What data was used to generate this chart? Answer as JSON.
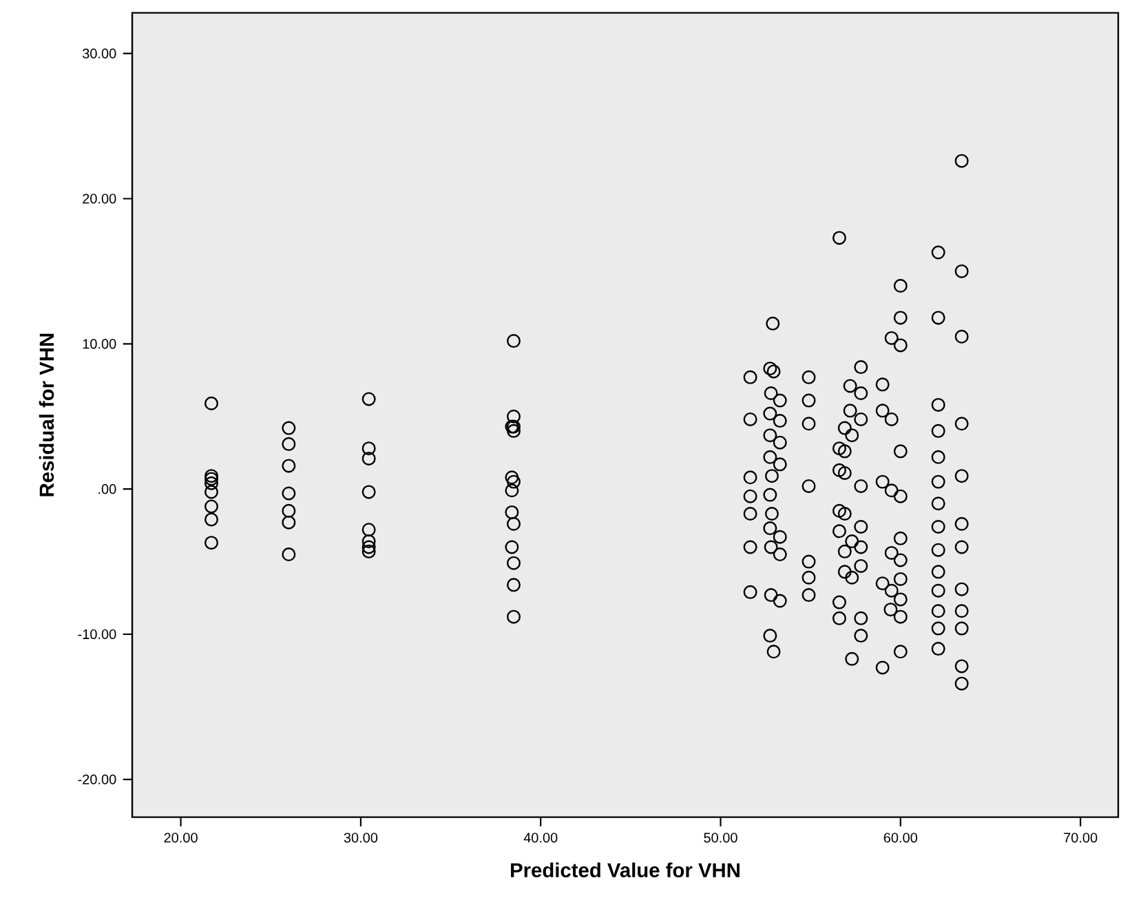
{
  "chart_data": {
    "type": "scatter",
    "xlabel": "Predicted Value for VHN",
    "ylabel": "Residual for VHN",
    "xlim": [
      17.3,
      72.1
    ],
    "ylim": [
      -22.6,
      32.8
    ],
    "xticks": [
      {
        "value": 20,
        "label": "20.00"
      },
      {
        "value": 30,
        "label": "30.00"
      },
      {
        "value": 40,
        "label": "40.00"
      },
      {
        "value": 50,
        "label": "50.00"
      },
      {
        "value": 60,
        "label": "60.00"
      },
      {
        "value": 70,
        "label": "70.00"
      }
    ],
    "yticks": [
      {
        "value": -20,
        "label": "-20.00"
      },
      {
        "value": -10,
        "label": "-10.00"
      },
      {
        "value": 0,
        "label": ".00"
      },
      {
        "value": 10,
        "label": "10.00"
      },
      {
        "value": 20,
        "label": "20.00"
      },
      {
        "value": 30,
        "label": "30.00"
      }
    ],
    "marker": "circle",
    "series": [
      {
        "color": "#000000",
        "x": [
          21.7,
          21.7,
          21.7,
          21.7,
          21.7,
          21.7,
          21.7,
          21.7,
          26.0,
          26.0,
          26.0,
          26.0,
          26.0,
          26.0,
          26.0,
          30.45,
          30.45,
          30.45,
          30.45,
          30.45,
          30.45,
          30.45,
          30.45,
          38.5,
          38.5,
          38.4,
          38.5,
          38.5,
          38.4,
          38.5,
          38.4,
          38.4,
          38.5,
          38.4,
          38.5,
          38.5,
          38.5,
          56.6,
          62.1,
          63.4,
          60.0,
          60.0,
          62.1,
          63.4,
          52.9,
          59.5,
          60.0,
          57.8,
          51.65,
          52.75,
          52.95,
          54.9,
          57.2,
          57.8,
          59.0,
          52.8,
          53.3,
          54.9,
          52.75,
          57.2,
          59.0,
          62.1,
          51.65,
          53.3,
          54.9,
          56.9,
          57.8,
          59.5,
          62.1,
          63.4,
          52.75,
          57.3,
          53.3,
          56.6,
          56.9,
          60.0,
          62.1,
          52.75,
          53.3,
          51.65,
          52.85,
          56.6,
          56.9,
          54.9,
          57.8,
          59.0,
          59.5,
          60.0,
          62.1,
          63.4,
          51.65,
          52.75,
          51.65,
          52.85,
          62.1,
          56.6,
          56.9,
          57.8,
          52.75,
          53.3,
          62.1,
          63.4,
          56.6,
          57.3,
          51.65,
          52.8,
          53.3,
          54.9,
          56.9,
          57.8,
          60.0,
          59.5,
          60.0,
          62.1,
          63.4,
          56.9,
          57.3,
          57.8,
          54.9,
          62.1,
          59.0,
          59.5,
          60.0,
          63.4,
          51.65,
          52.8,
          53.3,
          54.9,
          62.1,
          56.6,
          59.45,
          60.0,
          60.0,
          62.1,
          63.4,
          56.6,
          57.8,
          57.8,
          62.1,
          63.4,
          52.75,
          52.95,
          57.3,
          59.0,
          60.0,
          62.1,
          63.4,
          63.4,
          63.4
        ],
        "values": [
          5.9,
          0.9,
          0.7,
          0.4,
          -0.2,
          -1.2,
          -2.1,
          -3.7,
          4.2,
          3.1,
          1.6,
          -0.3,
          -1.5,
          -2.3,
          -4.5,
          6.2,
          2.8,
          2.1,
          -0.2,
          -2.8,
          -3.6,
          -4.0,
          -4.3,
          10.2,
          5.0,
          4.3,
          4.3,
          4.0,
          0.8,
          0.5,
          -0.1,
          -1.6,
          -2.4,
          -4.0,
          -5.1,
          -6.6,
          -8.8,
          17.3,
          16.3,
          15.0,
          14.0,
          11.8,
          11.8,
          10.5,
          11.4,
          10.4,
          9.9,
          8.4,
          7.7,
          8.3,
          8.1,
          7.7,
          7.1,
          6.6,
          7.2,
          6.6,
          6.1,
          6.1,
          5.2,
          5.4,
          5.4,
          5.8,
          4.8,
          4.7,
          4.5,
          4.2,
          4.8,
          4.8,
          4.0,
          4.5,
          3.7,
          3.7,
          3.2,
          2.8,
          2.6,
          2.6,
          2.2,
          2.2,
          1.7,
          0.8,
          0.9,
          1.3,
          1.1,
          0.2,
          0.2,
          0.5,
          -0.1,
          -0.5,
          0.5,
          0.9,
          -0.5,
          -0.4,
          -1.7,
          -1.7,
          -1.0,
          -1.5,
          -1.7,
          -2.6,
          -2.7,
          -3.3,
          -2.6,
          -2.4,
          -2.9,
          -3.6,
          -4.0,
          -4.0,
          -4.5,
          -5.0,
          -4.3,
          -4.0,
          -3.4,
          -4.4,
          -4.9,
          -4.2,
          -4.0,
          -5.7,
          -6.1,
          -5.3,
          -6.1,
          -5.7,
          -6.5,
          -7.0,
          -6.2,
          -6.9,
          -7.1,
          -7.3,
          -7.7,
          -7.3,
          -7.0,
          -7.8,
          -8.3,
          -7.6,
          -8.8,
          -8.4,
          -8.4,
          -8.9,
          -8.9,
          -10.1,
          -9.6,
          -9.6,
          -10.1,
          -11.2,
          -11.7,
          -12.3,
          -11.2,
          -11.0,
          -12.2,
          -13.4,
          22.6
        ]
      }
    ]
  }
}
